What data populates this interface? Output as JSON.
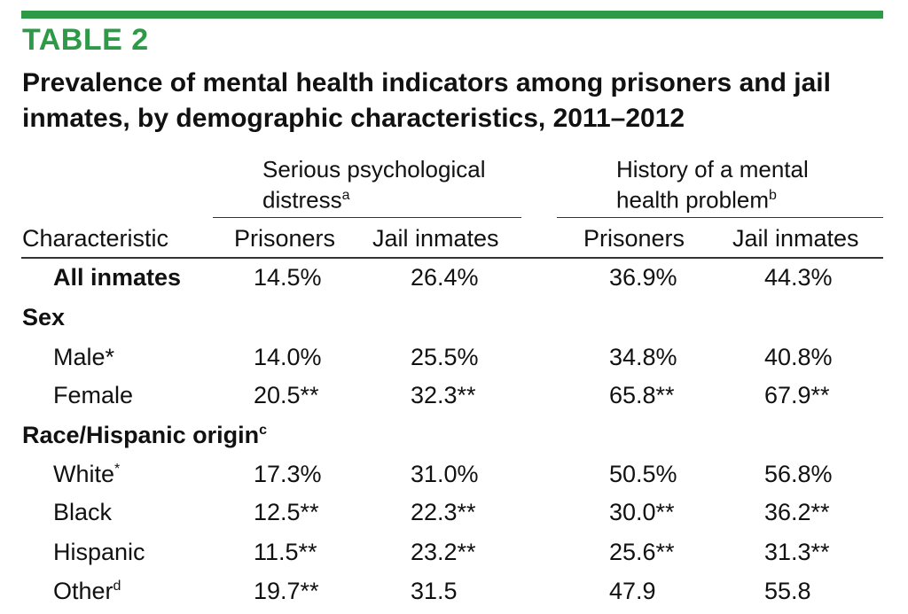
{
  "table_label": "TABLE 2",
  "title": "Prevalence of mental health indicators among prisoners and jail inmates, by demographic characteristics, 2011–2012",
  "groups": [
    {
      "line1": "Serious psychological",
      "line2": "distress",
      "sup": "a"
    },
    {
      "line1": "History of a mental",
      "line2": "health problem",
      "sup": "b"
    }
  ],
  "columns": {
    "characteristic": "Characteristic",
    "c1": "Prisoners",
    "c2": "Jail inmates",
    "c3": "Prisoners",
    "c4": "Jail inmates"
  },
  "rows": [
    {
      "label": "All inmates",
      "sup": "",
      "values": [
        "14.5%",
        "26.4%",
        "36.9%",
        "44.3%"
      ]
    },
    {
      "label": "Sex",
      "sup": ""
    },
    {
      "label": "Male*",
      "sup": "",
      "values": [
        "14.0%",
        "25.5%",
        "34.8%",
        "40.8%"
      ]
    },
    {
      "label": "Female",
      "sup": "",
      "values": [
        "20.5**",
        "32.3**",
        "65.8**",
        "67.9**"
      ]
    },
    {
      "label": "Race/Hispanic origin",
      "sup": "c"
    },
    {
      "label": "White",
      "sup": "*",
      "values": [
        "17.3%",
        "31.0%",
        "50.5%",
        "56.8%"
      ]
    },
    {
      "label": "Black",
      "sup": "",
      "values": [
        "12.5**",
        "22.3**",
        "30.0**",
        "36.2**"
      ]
    },
    {
      "label": "Hispanic",
      "sup": "",
      "values": [
        "11.5**",
        "23.2**",
        "25.6**",
        "31.3**"
      ]
    },
    {
      "label": "Other",
      "sup": "d",
      "values": [
        "19.7**",
        "31.5",
        "47.9",
        "55.8"
      ]
    }
  ],
  "colors": {
    "accent": "#2e9a48",
    "text": "#111111"
  }
}
